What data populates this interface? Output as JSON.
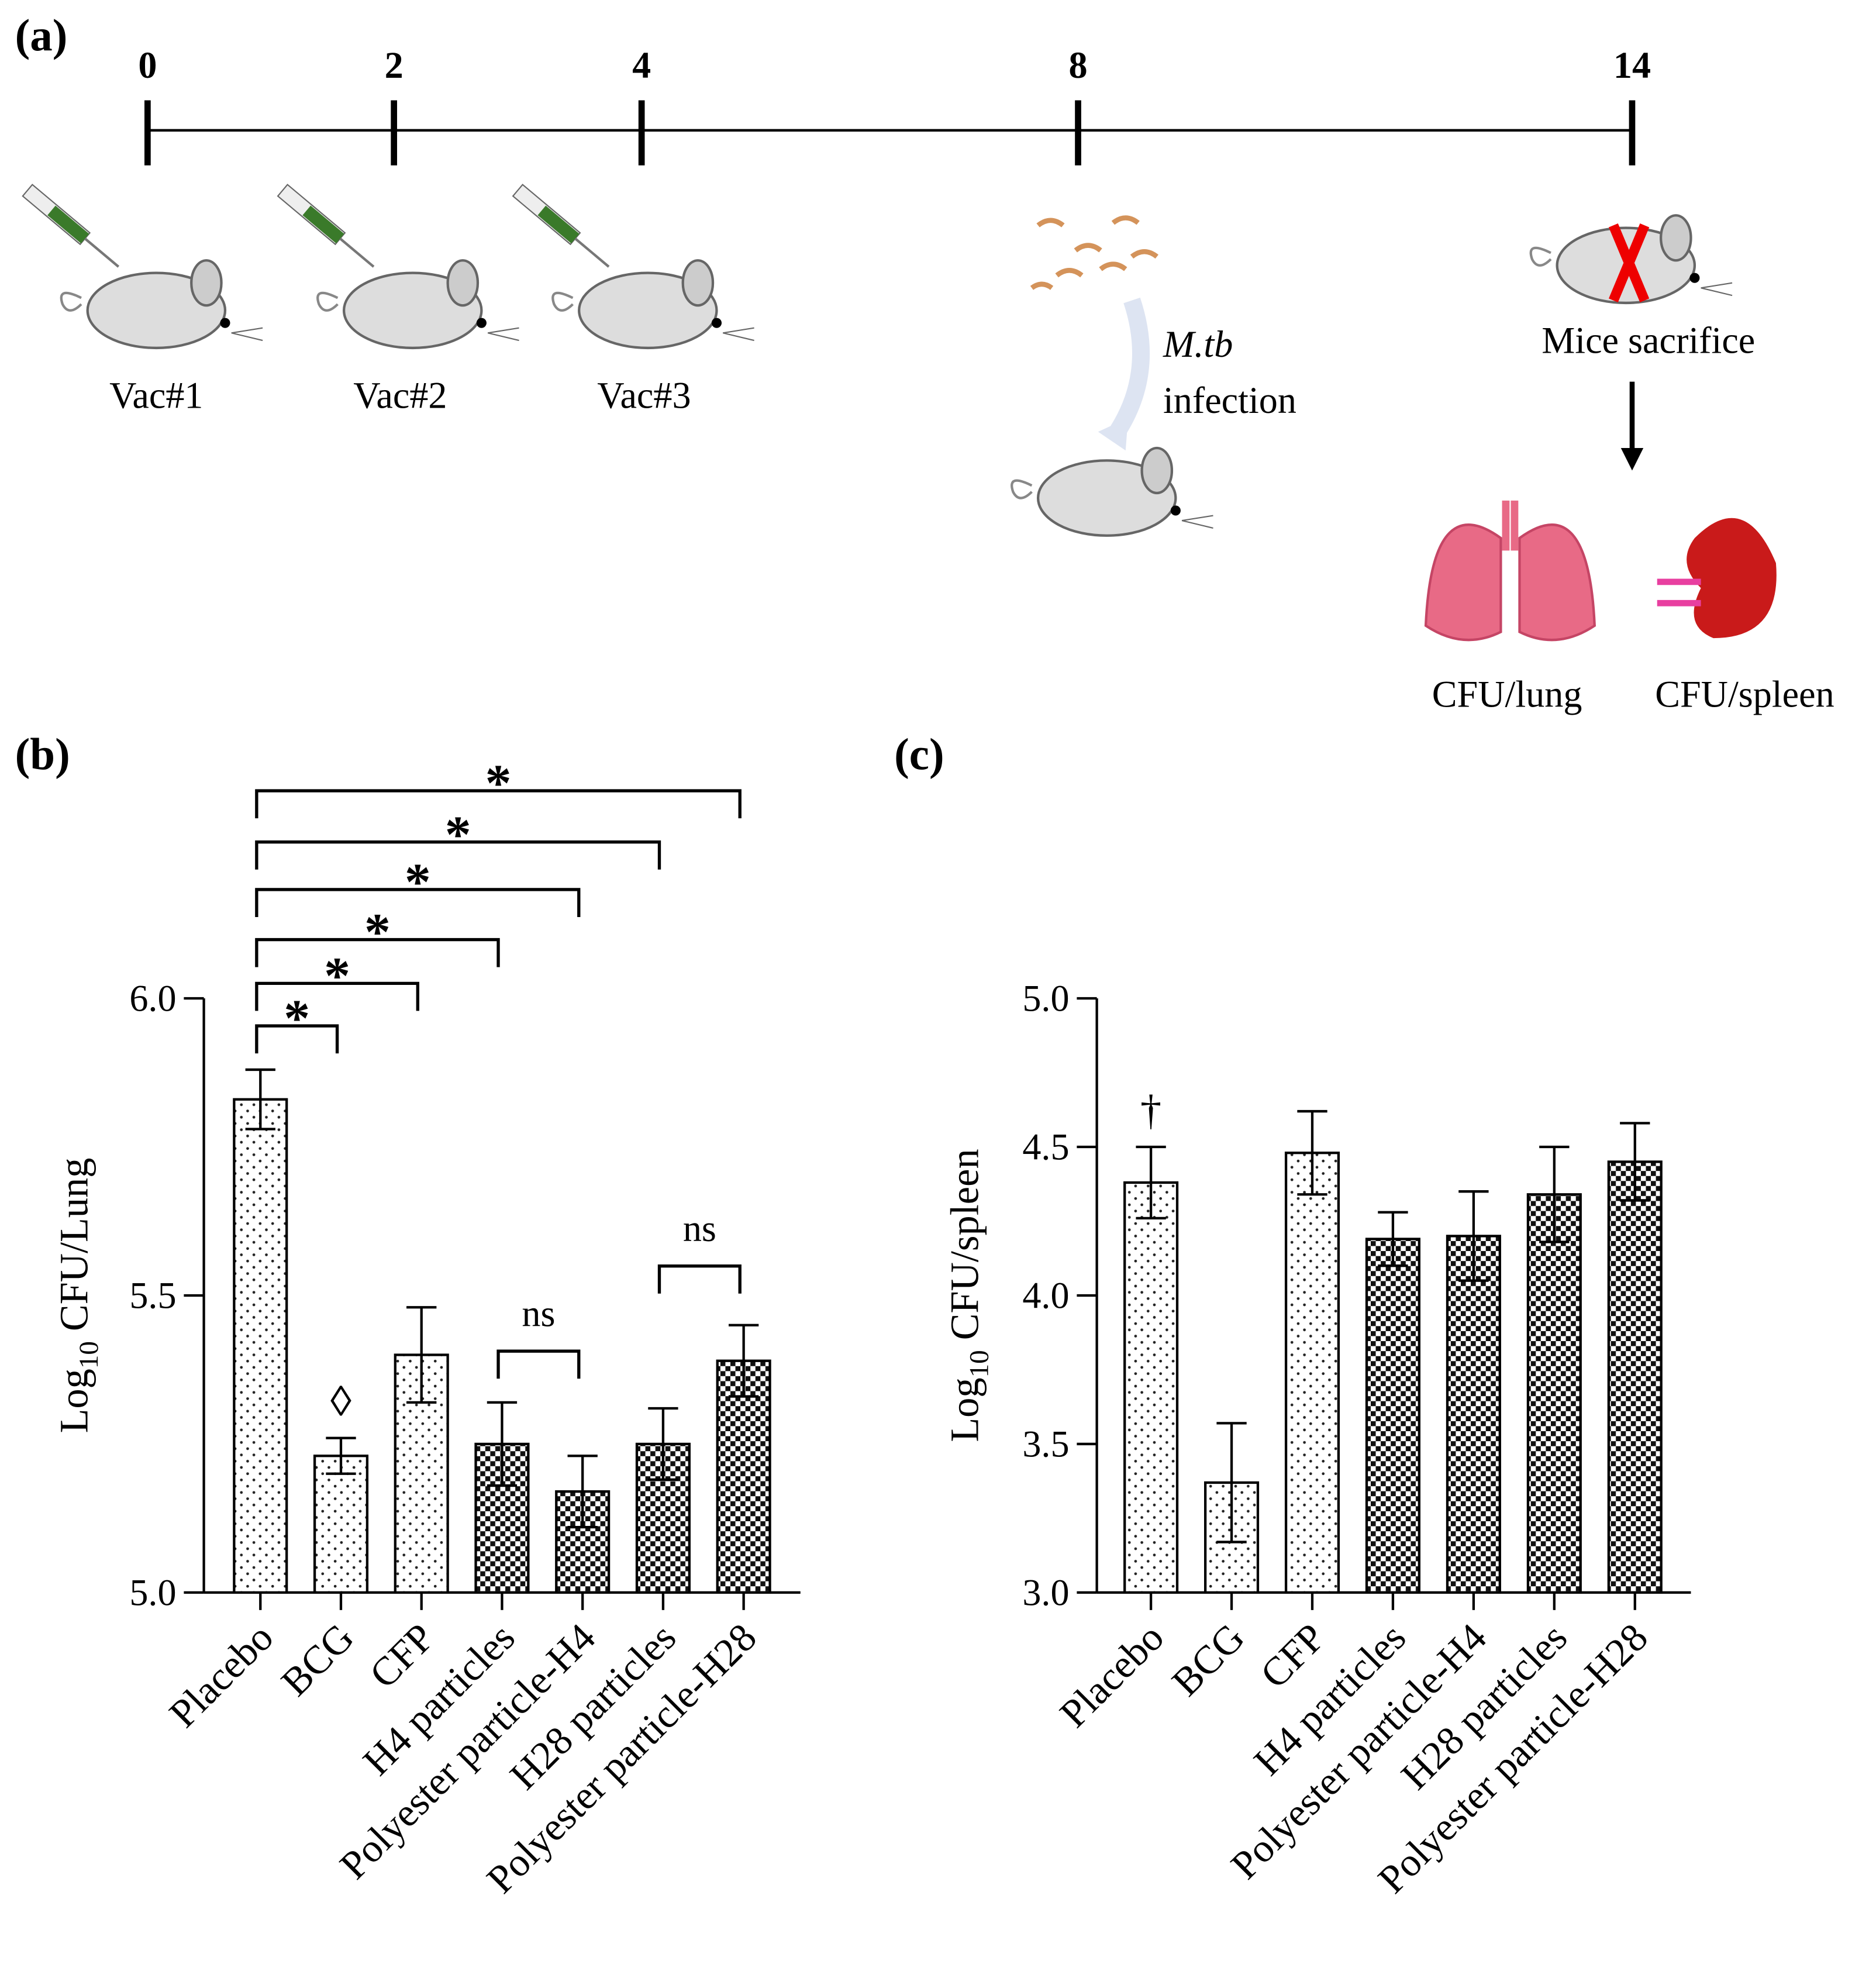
{
  "panel_a": {
    "label": "(a)",
    "weeks": [
      0,
      2,
      4,
      8,
      14
    ],
    "vaccinations": [
      "Vac#1",
      "Vac#2",
      "Vac#3"
    ],
    "infection": [
      "M.tb",
      "infection"
    ],
    "sacrifice": "Mice sacrifice",
    "organs": [
      "CFU/lung",
      "CFU/spleen"
    ]
  },
  "chart_data": [
    {
      "type": "bar",
      "panel": "(b)",
      "ylabel": [
        "Log",
        "10",
        " CFU/Lung"
      ],
      "categories": [
        "Placebo",
        "BCG",
        "CFP",
        "H4 particles",
        "Polyester particle-H4",
        "H28 particles",
        "Polyester particle-H28"
      ],
      "values": [
        5.83,
        5.23,
        5.4,
        5.25,
        5.17,
        5.25,
        5.39
      ],
      "errors": [
        0.05,
        0.03,
        0.08,
        0.07,
        0.06,
        0.06,
        0.06
      ],
      "patterns": [
        "dots",
        "dots",
        "dots",
        "checker",
        "checker",
        "checker",
        "checker"
      ],
      "ylim": [
        5,
        6
      ],
      "yticks": [
        {
          "value": 5,
          "label": "5.0"
        },
        {
          "value": 5.5,
          "label": "5.5"
        },
        {
          "value": 6,
          "label": "6.0"
        }
      ],
      "annotations": [
        {
          "index": 1,
          "label": "◊"
        }
      ],
      "brackets": [
        {
          "from": 0,
          "to": 1,
          "label": "*"
        },
        {
          "from": 0,
          "to": 2,
          "label": "*"
        },
        {
          "from": 0,
          "to": 3,
          "label": "*"
        },
        {
          "from": 0,
          "to": 4,
          "label": "*"
        },
        {
          "from": 0,
          "to": 5,
          "label": "*"
        },
        {
          "from": 0,
          "to": 6,
          "label": "*"
        },
        {
          "from": 3,
          "to": 4,
          "label": "ns"
        },
        {
          "from": 5,
          "to": 6,
          "label": "ns"
        }
      ]
    },
    {
      "type": "bar",
      "panel": "(c)",
      "ylabel": [
        "Log",
        "10",
        " CFU/spleen"
      ],
      "categories": [
        "Placebo",
        "BCG",
        "CFP",
        "H4 particles",
        "Polyester particle-H4",
        "H28 particles",
        "Polyester particle-H28"
      ],
      "values": [
        4.38,
        3.37,
        4.48,
        4.19,
        4.2,
        4.34,
        4.45
      ],
      "errors": [
        0.12,
        0.2,
        0.14,
        0.09,
        0.15,
        0.16,
        0.13
      ],
      "patterns": [
        "dots",
        "dots",
        "dots",
        "checker",
        "checker",
        "checker",
        "checker"
      ],
      "ylim": [
        3,
        5
      ],
      "yticks": [
        {
          "value": 3,
          "label": "3.0"
        },
        {
          "value": 3.5,
          "label": "3.5"
        },
        {
          "value": 4,
          "label": "4.0"
        },
        {
          "value": 4.5,
          "label": "4.5"
        },
        {
          "value": 5,
          "label": "5.0"
        }
      ],
      "annotations": [
        {
          "index": 0,
          "label": "†"
        }
      ],
      "brackets": []
    }
  ]
}
